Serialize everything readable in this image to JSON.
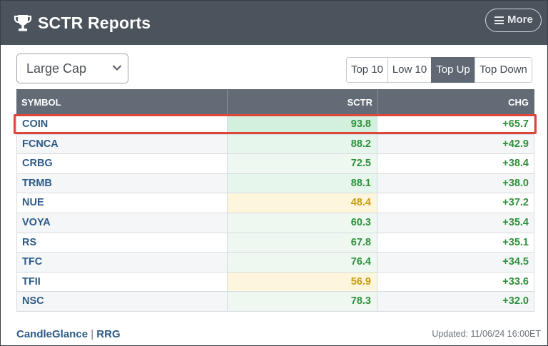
{
  "header": {
    "title": "SCTR Reports",
    "more_label": "More"
  },
  "filter": {
    "selected": "Large Cap"
  },
  "tabs": [
    {
      "label": "Top 10",
      "active": false
    },
    {
      "label": "Low 10",
      "active": false
    },
    {
      "label": "Top Up",
      "active": true
    },
    {
      "label": "Top Down",
      "active": false
    }
  ],
  "table": {
    "columns": [
      "SYMBOL",
      "SCTR",
      "CHG"
    ],
    "rows": [
      {
        "symbol": "COIN",
        "sctr": "93.8",
        "chg": "+65.7"
      },
      {
        "symbol": "FCNCA",
        "sctr": "88.2",
        "chg": "+42.9"
      },
      {
        "symbol": "CRBG",
        "sctr": "72.5",
        "chg": "+38.4"
      },
      {
        "symbol": "TRMB",
        "sctr": "88.1",
        "chg": "+38.0"
      },
      {
        "symbol": "NUE",
        "sctr": "48.4",
        "chg": "+37.2"
      },
      {
        "symbol": "VOYA",
        "sctr": "60.3",
        "chg": "+35.4"
      },
      {
        "symbol": "RS",
        "sctr": "67.8",
        "chg": "+35.1"
      },
      {
        "symbol": "TFC",
        "sctr": "76.4",
        "chg": "+34.5"
      },
      {
        "symbol": "TFII",
        "sctr": "56.9",
        "chg": "+33.6"
      },
      {
        "symbol": "NSC",
        "sctr": "78.3",
        "chg": "+32.0"
      }
    ]
  },
  "footer": {
    "link_candleglance": "CandleGlance",
    "separator": "|",
    "link_rrg": "RRG",
    "updated": "Updated: 11/06/24 16:00ET"
  },
  "colors": {
    "header_bg": "#4b535d",
    "table_header_bg": "#626b76",
    "active_tab_bg": "#5f6873",
    "symbol_text": "#2c5a86",
    "positive_green": "#2f8f3a",
    "neutral_yellow": "#c89a12",
    "highlight_box": "#e0453a"
  },
  "icons": {
    "header": "trophy-icon",
    "more": "menu-icon",
    "dropdown": "chevron-down-icon"
  }
}
